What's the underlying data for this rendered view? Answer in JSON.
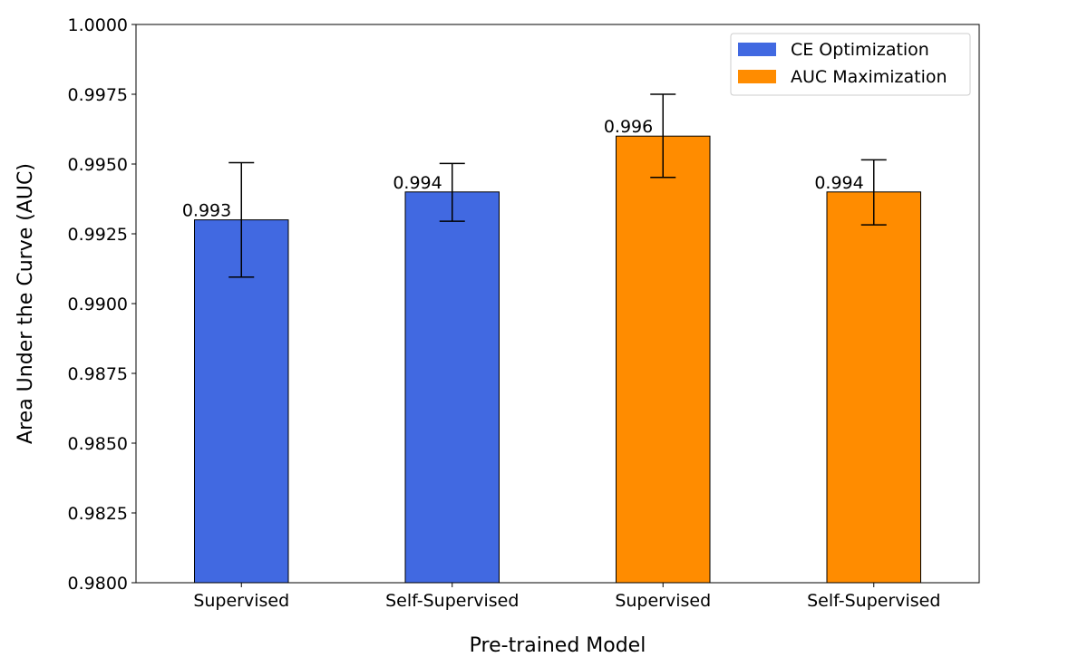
{
  "chart_data": {
    "type": "bar",
    "title": "",
    "xlabel": "Pre-trained Model",
    "ylabel": "Area Under the Curve (AUC)",
    "ylim": [
      0.98,
      1.0
    ],
    "yticks": [
      0.98,
      0.9825,
      0.985,
      0.9875,
      0.99,
      0.9925,
      0.995,
      0.9975,
      1.0
    ],
    "ytick_labels": [
      "0.9800",
      "0.9825",
      "0.9850",
      "0.9875",
      "0.9900",
      "0.9925",
      "0.9950",
      "0.9975",
      "1.0000"
    ],
    "legend_position": "top-right",
    "series": [
      {
        "name": "CE Optimization",
        "color": "#4169E1"
      },
      {
        "name": "AUC Maximization",
        "color": "#FF8C00"
      }
    ],
    "bars": [
      {
        "category": "Supervised",
        "series": "CE Optimization",
        "value": 0.993,
        "label": "0.993",
        "err_low": 0.99095,
        "err_high": 0.99505
      },
      {
        "category": "Self-Supervised",
        "series": "CE Optimization",
        "value": 0.994,
        "label": "0.994",
        "err_low": 0.99295,
        "err_high": 0.99502
      },
      {
        "category": "Supervised",
        "series": "AUC Maximization",
        "value": 0.996,
        "label": "0.996",
        "err_low": 0.99452,
        "err_high": 0.9975
      },
      {
        "category": "Self-Supervised",
        "series": "AUC Maximization",
        "value": 0.994,
        "label": "0.994",
        "err_low": 0.99282,
        "err_high": 0.99515
      }
    ]
  }
}
